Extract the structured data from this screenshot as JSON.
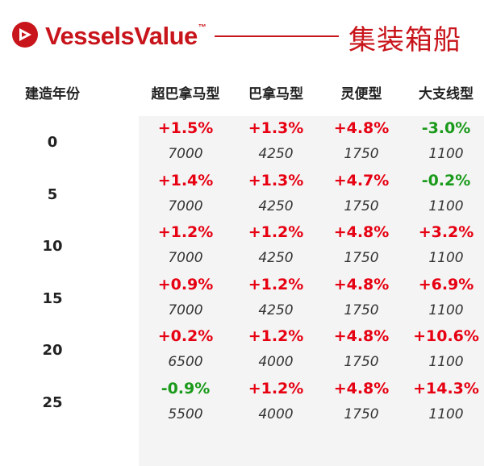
{
  "header": {
    "brand": "VesselsValue",
    "tm": "™",
    "section_title": "集装箱船"
  },
  "table": {
    "year_header": "建造年份",
    "columns": [
      "超巴拿马型",
      "巴拿马型",
      "灵便型",
      "大支线型"
    ],
    "rows": [
      {
        "year": "0",
        "changes": [
          "+1.5%",
          "+1.3%",
          "+4.8%",
          "-3.0%"
        ],
        "sizes": [
          "7000",
          "4250",
          "1750",
          "1100"
        ]
      },
      {
        "year": "5",
        "changes": [
          "+1.4%",
          "+1.3%",
          "+4.7%",
          "-0.2%"
        ],
        "sizes": [
          "7000",
          "4250",
          "1750",
          "1100"
        ]
      },
      {
        "year": "10",
        "changes": [
          "+1.2%",
          "+1.2%",
          "+4.8%",
          "+3.2%"
        ],
        "sizes": [
          "7000",
          "4250",
          "1750",
          "1100"
        ]
      },
      {
        "year": "15",
        "changes": [
          "+0.9%",
          "+1.2%",
          "+4.8%",
          "+6.9%"
        ],
        "sizes": [
          "7000",
          "4250",
          "1750",
          "1100"
        ]
      },
      {
        "year": "20",
        "changes": [
          "+0.2%",
          "+1.2%",
          "+4.8%",
          "+10.6%"
        ],
        "sizes": [
          "6500",
          "4000",
          "1750",
          "1100"
        ]
      },
      {
        "year": "25",
        "changes": [
          "-0.9%",
          "+1.2%",
          "+4.8%",
          "+14.3%"
        ],
        "sizes": [
          "5500",
          "4000",
          "1750",
          "1100"
        ]
      }
    ]
  },
  "colors": {
    "brand": "#c8151b",
    "positive": "#e60012",
    "negative": "#1a9a1a"
  },
  "icons": {
    "logo": "vesselsvalue-logo-icon"
  }
}
